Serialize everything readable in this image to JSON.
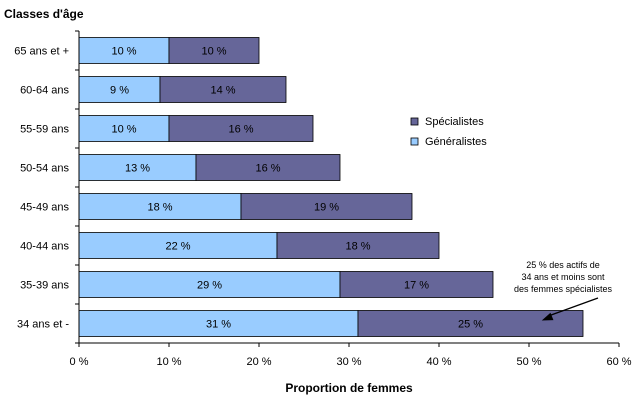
{
  "chart_data": {
    "type": "bar",
    "orientation": "horizontal",
    "stacked": true,
    "title": "",
    "ylabel": "Classes d'âge",
    "xlabel": "Proportion de femmes",
    "categories": [
      "65 ans et +",
      "60-64 ans",
      "55-59 ans",
      "50-54 ans",
      "45-49 ans",
      "40-44 ans",
      "35-39 ans",
      "34 ans et -"
    ],
    "series": [
      {
        "name": "Généralistes",
        "color": "#99ccff",
        "values": [
          10,
          9,
          10,
          13,
          18,
          22,
          29,
          31
        ],
        "labels": [
          "10 %",
          "9 %",
          "10 %",
          "13 %",
          "18 %",
          "22 %",
          "29 %",
          "31 %"
        ]
      },
      {
        "name": "Spécialistes",
        "color": "#666699",
        "values": [
          10,
          14,
          16,
          16,
          19,
          18,
          17,
          25
        ],
        "labels": [
          "10 %",
          "14 %",
          "16 %",
          "16 %",
          "19 %",
          "18 %",
          "17 %",
          "25 %"
        ]
      }
    ],
    "xlim": [
      0,
      60
    ],
    "xticks": [
      0,
      10,
      20,
      30,
      40,
      50,
      60
    ],
    "xtick_labels": [
      "0 %",
      "10 %",
      "20 %",
      "30 %",
      "40 %",
      "50 %",
      "60 %"
    ],
    "grid": false,
    "legend": {
      "placement": "right",
      "entries": [
        "Spécialistes",
        "Généralistes"
      ]
    },
    "annotation": {
      "lines": [
        "25 % des actifs de",
        "34 ans et moins sont",
        "des femmes spécialistes"
      ],
      "target_category": "34 ans et -"
    }
  }
}
